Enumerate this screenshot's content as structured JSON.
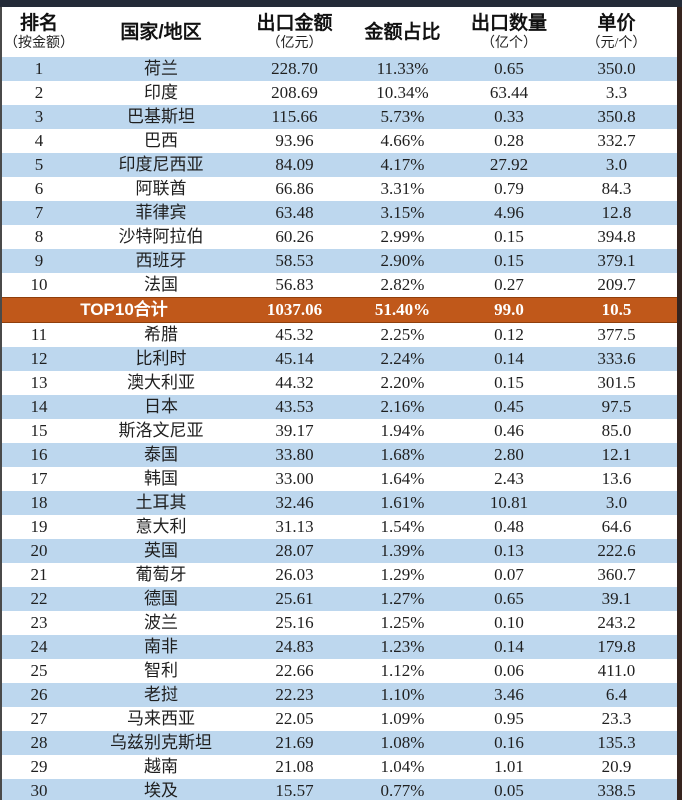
{
  "colors": {
    "row_alt": "#BDD7EE",
    "total_bg": "#C0581A",
    "top_bar": "#242B38",
    "left_border": "#4A4A4A",
    "right_border": "#36241E",
    "text": "#1F1F1F"
  },
  "chart_data": {
    "type": "table",
    "columns": [
      {
        "title": "排名",
        "subtitle": "（按金额）"
      },
      {
        "title": "国家/地区",
        "subtitle": ""
      },
      {
        "title": "出口金额",
        "subtitle": "（亿元）"
      },
      {
        "title": "金额占比",
        "subtitle": ""
      },
      {
        "title": "出口数量",
        "subtitle": "（亿个）"
      },
      {
        "title": "单价",
        "subtitle": "（元/个）"
      }
    ],
    "rows": [
      {
        "rank": "1",
        "country": "荷兰",
        "amount": "228.70",
        "share": "11.33%",
        "quantity": "0.65",
        "unit_price": "350.0"
      },
      {
        "rank": "2",
        "country": "印度",
        "amount": "208.69",
        "share": "10.34%",
        "quantity": "63.44",
        "unit_price": "3.3"
      },
      {
        "rank": "3",
        "country": "巴基斯坦",
        "amount": "115.66",
        "share": "5.73%",
        "quantity": "0.33",
        "unit_price": "350.8"
      },
      {
        "rank": "4",
        "country": "巴西",
        "amount": "93.96",
        "share": "4.66%",
        "quantity": "0.28",
        "unit_price": "332.7"
      },
      {
        "rank": "5",
        "country": "印度尼西亚",
        "amount": "84.09",
        "share": "4.17%",
        "quantity": "27.92",
        "unit_price": "3.0"
      },
      {
        "rank": "6",
        "country": "阿联酋",
        "amount": "66.86",
        "share": "3.31%",
        "quantity": "0.79",
        "unit_price": "84.3"
      },
      {
        "rank": "7",
        "country": "菲律宾",
        "amount": "63.48",
        "share": "3.15%",
        "quantity": "4.96",
        "unit_price": "12.8"
      },
      {
        "rank": "8",
        "country": "沙特阿拉伯",
        "amount": "60.26",
        "share": "2.99%",
        "quantity": "0.15",
        "unit_price": "394.8"
      },
      {
        "rank": "9",
        "country": "西班牙",
        "amount": "58.53",
        "share": "2.90%",
        "quantity": "0.15",
        "unit_price": "379.1"
      },
      {
        "rank": "10",
        "country": "法国",
        "amount": "56.83",
        "share": "2.82%",
        "quantity": "0.27",
        "unit_price": "209.7"
      },
      {
        "type": "total",
        "label": "TOP10合计",
        "amount": "1037.06",
        "share": "51.40%",
        "quantity": "99.0",
        "unit_price": "10.5"
      },
      {
        "rank": "11",
        "country": "希腊",
        "amount": "45.32",
        "share": "2.25%",
        "quantity": "0.12",
        "unit_price": "377.5"
      },
      {
        "rank": "12",
        "country": "比利时",
        "amount": "45.14",
        "share": "2.24%",
        "quantity": "0.14",
        "unit_price": "333.6"
      },
      {
        "rank": "13",
        "country": "澳大利亚",
        "amount": "44.32",
        "share": "2.20%",
        "quantity": "0.15",
        "unit_price": "301.5"
      },
      {
        "rank": "14",
        "country": "日本",
        "amount": "43.53",
        "share": "2.16%",
        "quantity": "0.45",
        "unit_price": "97.5"
      },
      {
        "rank": "15",
        "country": "斯洛文尼亚",
        "amount": "39.17",
        "share": "1.94%",
        "quantity": "0.46",
        "unit_price": "85.0"
      },
      {
        "rank": "16",
        "country": "泰国",
        "amount": "33.80",
        "share": "1.68%",
        "quantity": "2.80",
        "unit_price": "12.1"
      },
      {
        "rank": "17",
        "country": "韩国",
        "amount": "33.00",
        "share": "1.64%",
        "quantity": "2.43",
        "unit_price": "13.6"
      },
      {
        "rank": "18",
        "country": "土耳其",
        "amount": "32.46",
        "share": "1.61%",
        "quantity": "10.81",
        "unit_price": "3.0"
      },
      {
        "rank": "19",
        "country": "意大利",
        "amount": "31.13",
        "share": "1.54%",
        "quantity": "0.48",
        "unit_price": "64.6"
      },
      {
        "rank": "20",
        "country": "英国",
        "amount": "28.07",
        "share": "1.39%",
        "quantity": "0.13",
        "unit_price": "222.6"
      },
      {
        "rank": "21",
        "country": "葡萄牙",
        "amount": "26.03",
        "share": "1.29%",
        "quantity": "0.07",
        "unit_price": "360.7"
      },
      {
        "rank": "22",
        "country": "德国",
        "amount": "25.61",
        "share": "1.27%",
        "quantity": "0.65",
        "unit_price": "39.1"
      },
      {
        "rank": "23",
        "country": "波兰",
        "amount": "25.16",
        "share": "1.25%",
        "quantity": "0.10",
        "unit_price": "243.2"
      },
      {
        "rank": "24",
        "country": "南非",
        "amount": "24.83",
        "share": "1.23%",
        "quantity": "0.14",
        "unit_price": "179.8"
      },
      {
        "rank": "25",
        "country": "智利",
        "amount": "22.66",
        "share": "1.12%",
        "quantity": "0.06",
        "unit_price": "411.0"
      },
      {
        "rank": "26",
        "country": "老挝",
        "amount": "22.23",
        "share": "1.10%",
        "quantity": "3.46",
        "unit_price": "6.4"
      },
      {
        "rank": "27",
        "country": "马来西亚",
        "amount": "22.05",
        "share": "1.09%",
        "quantity": "0.95",
        "unit_price": "23.3"
      },
      {
        "rank": "28",
        "country": "乌兹别克斯坦",
        "amount": "21.69",
        "share": "1.08%",
        "quantity": "0.16",
        "unit_price": "135.3"
      },
      {
        "rank": "29",
        "country": "越南",
        "amount": "21.08",
        "share": "1.04%",
        "quantity": "1.01",
        "unit_price": "20.9"
      },
      {
        "rank": "30",
        "country": "埃及",
        "amount": "15.57",
        "share": "0.77%",
        "quantity": "0.05",
        "unit_price": "338.5"
      }
    ]
  }
}
